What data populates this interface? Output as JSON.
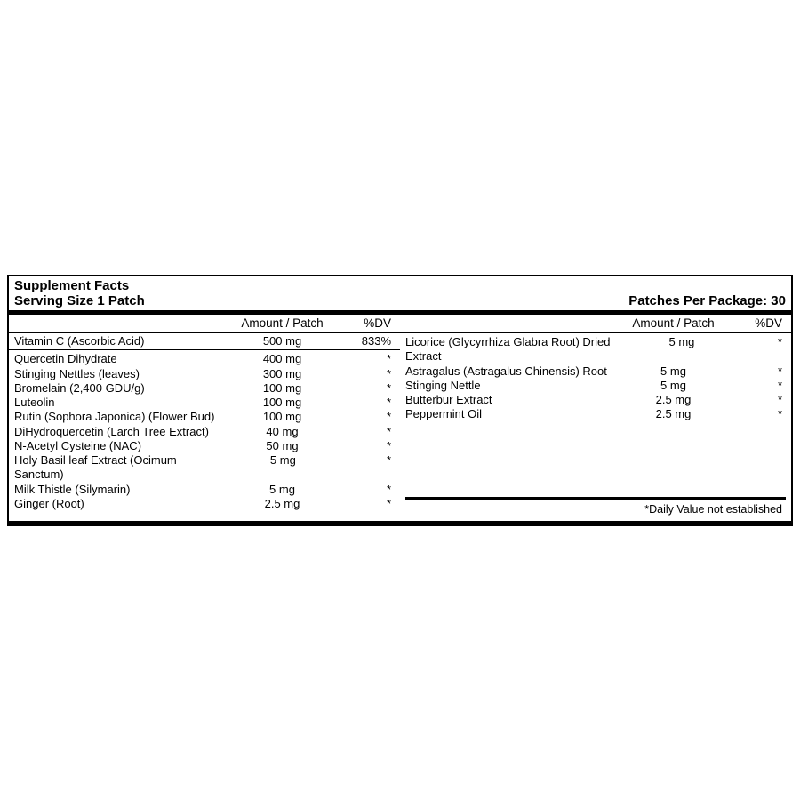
{
  "header": {
    "title": "Supplement Facts",
    "serving": "Serving Size 1 Patch",
    "package": "Patches Per Package: 30"
  },
  "colhead": {
    "amount": "Amount / Patch",
    "dv": "%DV"
  },
  "left": {
    "vitc": {
      "name": "Vitamin C (Ascorbic Acid)",
      "amount": "500 mg",
      "dv": "833%"
    },
    "rows": [
      {
        "name": "Quercetin Dihydrate",
        "amount": "400 mg",
        "dv": "*"
      },
      {
        "name": "Stinging Nettles (leaves)",
        "amount": "300 mg",
        "dv": "*"
      },
      {
        "name": "Bromelain (2,400 GDU/g)",
        "amount": "100 mg",
        "dv": "*"
      },
      {
        "name": "Luteolin",
        "amount": "100 mg",
        "dv": "*"
      },
      {
        "name": "Rutin (Sophora Japonica) (Flower Bud)",
        "amount": "100 mg",
        "dv": "*"
      },
      {
        "name": "DiHydroquercetin (Larch Tree Extract)",
        "amount": "40 mg",
        "dv": "*"
      },
      {
        "name": "N-Acetyl Cysteine (NAC)",
        "amount": "50 mg",
        "dv": "*"
      },
      {
        "name": "Holy Basil leaf Extract (Ocimum Sanctum)",
        "amount": "5 mg",
        "dv": "*"
      },
      {
        "name": "Milk Thistle (Silymarin)",
        "amount": "5 mg",
        "dv": "*"
      },
      {
        "name": "Ginger (Root)",
        "amount": "2.5 mg",
        "dv": "*"
      }
    ]
  },
  "right": {
    "rows": [
      {
        "name": "Licorice (Glycyrrhiza Glabra Root) Dried Extract",
        "amount": "5 mg",
        "dv": "*"
      },
      {
        "name": "Astragalus (Astragalus Chinensis) Root",
        "amount": "5 mg",
        "dv": "*"
      },
      {
        "name": "Stinging Nettle",
        "amount": "5 mg",
        "dv": "*"
      },
      {
        "name": "Butterbur Extract",
        "amount": "2.5 mg",
        "dv": "*"
      },
      {
        "name": "Peppermint Oil",
        "amount": "2.5 mg",
        "dv": "*"
      }
    ],
    "footnote": "*Daily Value not established"
  }
}
